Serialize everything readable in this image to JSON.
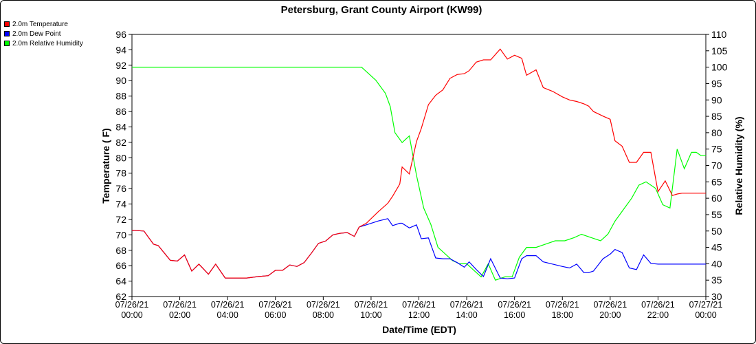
{
  "chart_data": {
    "type": "line",
    "title": "Petersburg, Grant County Airport (KW99)",
    "xlabel": "Date/Time (EDT)",
    "ylabel": "Temperature ( F)",
    "y2label": "Relative Humidity (%)",
    "xlim": [
      0,
      24
    ],
    "ylim": [
      62,
      96
    ],
    "y2lim": [
      30,
      110
    ],
    "grid": false,
    "legend_position": "top-left",
    "x_ticks": [
      {
        "value": 0,
        "date": "07/26/21",
        "time": "00:00"
      },
      {
        "value": 2,
        "date": "07/26/21",
        "time": "02:00"
      },
      {
        "value": 4,
        "date": "07/26/21",
        "time": "04:00"
      },
      {
        "value": 6,
        "date": "07/26/21",
        "time": "06:00"
      },
      {
        "value": 8,
        "date": "07/26/21",
        "time": "08:00"
      },
      {
        "value": 10,
        "date": "07/26/21",
        "time": "10:00"
      },
      {
        "value": 12,
        "date": "07/26/21",
        "time": "12:00"
      },
      {
        "value": 14,
        "date": "07/26/21",
        "time": "14:00"
      },
      {
        "value": 16,
        "date": "07/26/21",
        "time": "16:00"
      },
      {
        "value": 18,
        "date": "07/26/21",
        "time": "18:00"
      },
      {
        "value": 20,
        "date": "07/26/21",
        "time": "20:00"
      },
      {
        "value": 22,
        "date": "07/26/21",
        "time": "22:00"
      },
      {
        "value": 24,
        "date": "07/27/21",
        "time": "00:00"
      }
    ],
    "y_ticks": [
      62,
      64,
      66,
      68,
      70,
      72,
      74,
      76,
      78,
      80,
      82,
      84,
      86,
      88,
      90,
      92,
      94,
      96
    ],
    "y2_ticks": [
      30,
      35,
      40,
      45,
      50,
      55,
      60,
      65,
      70,
      75,
      80,
      85,
      90,
      95,
      100,
      105,
      110
    ],
    "series": [
      {
        "name": "2.0m Temperature",
        "color": "#ff0000",
        "axis": "left",
        "x": [
          0,
          0.5,
          0.9,
          1.1,
          1.6,
          1.9,
          2.2,
          2.5,
          2.8,
          3.2,
          3.5,
          3.9,
          4.3,
          4.8,
          5.3,
          5.7,
          6.0,
          6.3,
          6.6,
          6.9,
          7.2,
          7.5,
          7.8,
          8.1,
          8.4,
          8.7,
          9.0,
          9.3,
          9.5,
          9.8,
          10.3,
          10.7,
          10.9,
          11.2,
          11.3,
          11.6,
          11.9,
          12.1,
          12.4,
          12.7,
          13.0,
          13.3,
          13.6,
          13.9,
          14.1,
          14.4,
          14.7,
          15.0,
          15.4,
          15.7,
          16.0,
          16.3,
          16.5,
          16.9,
          17.2,
          17.6,
          18.0,
          18.3,
          18.6,
          18.9,
          19.1,
          19.3,
          19.7,
          20.0,
          20.2,
          20.5,
          20.8,
          21.1,
          21.4,
          21.7,
          22.0,
          22.3,
          22.6,
          22.8,
          23.0,
          23.3,
          23.6,
          24.0
        ],
        "values": [
          70.6,
          70.5,
          68.8,
          68.6,
          66.7,
          66.6,
          67.4,
          65.3,
          66.2,
          64.9,
          66.2,
          64.4,
          64.4,
          64.4,
          64.6,
          64.7,
          65.4,
          65.4,
          66.1,
          65.9,
          66.4,
          67.6,
          68.9,
          69.2,
          70.0,
          70.2,
          70.3,
          69.8,
          71.0,
          71.5,
          73.0,
          74.1,
          75.0,
          76.6,
          78.8,
          77.9,
          82.1,
          83.8,
          86.9,
          88.1,
          88.8,
          90.3,
          90.8,
          90.9,
          91.3,
          92.4,
          92.7,
          92.7,
          94.1,
          92.8,
          93.3,
          92.9,
          90.7,
          91.4,
          89.1,
          88.6,
          87.9,
          87.5,
          87.3,
          87.0,
          86.7,
          86.0,
          85.4,
          85.0,
          82.2,
          81.5,
          79.4,
          79.4,
          80.7,
          80.7,
          75.6,
          77.0,
          75.1,
          75.3,
          75.4,
          75.4,
          75.4,
          75.4
        ]
      },
      {
        "name": "2.0m Dew Point",
        "color": "#0000ff",
        "axis": "left",
        "x": [
          0,
          0.5,
          0.9,
          1.1,
          1.6,
          1.9,
          2.2,
          2.5,
          2.8,
          3.2,
          3.5,
          3.9,
          4.3,
          4.8,
          5.3,
          5.7,
          6.0,
          6.3,
          6.6,
          6.9,
          7.2,
          7.5,
          7.8,
          8.1,
          8.4,
          8.7,
          9.0,
          9.3,
          9.5,
          9.8,
          10.3,
          10.7,
          10.9,
          11.2,
          11.3,
          11.6,
          11.9,
          12.1,
          12.4,
          12.7,
          13.0,
          13.3,
          13.6,
          13.9,
          14.1,
          14.4,
          14.7,
          15.0,
          15.4,
          15.7,
          16.0,
          16.3,
          16.5,
          16.9,
          17.2,
          17.6,
          18.0,
          18.3,
          18.6,
          18.9,
          19.1,
          19.3,
          19.7,
          20.0,
          20.2,
          20.5,
          20.8,
          21.1,
          21.4,
          21.7,
          22.0,
          22.3,
          22.6,
          22.8,
          23.0,
          23.3,
          23.6,
          24.0
        ],
        "values": [
          70.6,
          70.5,
          68.8,
          68.6,
          66.7,
          66.6,
          67.4,
          65.3,
          66.2,
          64.9,
          66.2,
          64.4,
          64.4,
          64.4,
          64.6,
          64.7,
          65.4,
          65.4,
          66.1,
          65.9,
          66.4,
          67.6,
          68.9,
          69.2,
          70.0,
          70.2,
          70.3,
          69.8,
          71.0,
          71.3,
          71.8,
          72.1,
          71.2,
          71.5,
          71.5,
          70.9,
          71.3,
          69.5,
          69.6,
          67.0,
          66.9,
          66.9,
          66.4,
          65.8,
          66.5,
          65.5,
          64.6,
          66.9,
          64.4,
          64.3,
          64.4,
          66.9,
          67.3,
          67.3,
          66.5,
          66.2,
          65.9,
          65.7,
          66.2,
          65.1,
          65.1,
          65.3,
          66.9,
          67.5,
          68.1,
          67.7,
          65.7,
          65.5,
          67.4,
          66.3,
          66.2,
          66.2,
          66.2,
          66.2,
          66.2,
          66.2,
          66.2,
          66.2
        ]
      },
      {
        "name": "2.0m Relative Humidity",
        "color": "#00ff00",
        "axis": "right",
        "x": [
          0,
          1,
          2,
          3,
          4,
          5,
          6,
          7,
          8,
          9,
          9.6,
          10.2,
          10.6,
          10.8,
          11.0,
          11.3,
          11.6,
          11.9,
          12.2,
          12.5,
          12.8,
          13.1,
          13.4,
          13.7,
          14.0,
          14.3,
          14.6,
          14.9,
          15.2,
          15.6,
          15.9,
          16.2,
          16.5,
          16.9,
          17.3,
          17.7,
          18.1,
          18.5,
          18.8,
          19.2,
          19.6,
          19.9,
          20.2,
          20.6,
          20.9,
          21.2,
          21.5,
          21.9,
          22.2,
          22.5,
          22.8,
          23.1,
          23.4,
          23.6,
          23.8,
          24.0
        ],
        "values": [
          100,
          100,
          100,
          100,
          100,
          100,
          100,
          100,
          100,
          100,
          100,
          96,
          92,
          88,
          80,
          77,
          79,
          67,
          57,
          52,
          45,
          43,
          41,
          40,
          40,
          38,
          36,
          40,
          35,
          36,
          36,
          42,
          45,
          45,
          46,
          47,
          47,
          48,
          49,
          48,
          47,
          49,
          53,
          57,
          60,
          64,
          65,
          63,
          58,
          57,
          75,
          69,
          74,
          74,
          73,
          73
        ]
      }
    ]
  }
}
